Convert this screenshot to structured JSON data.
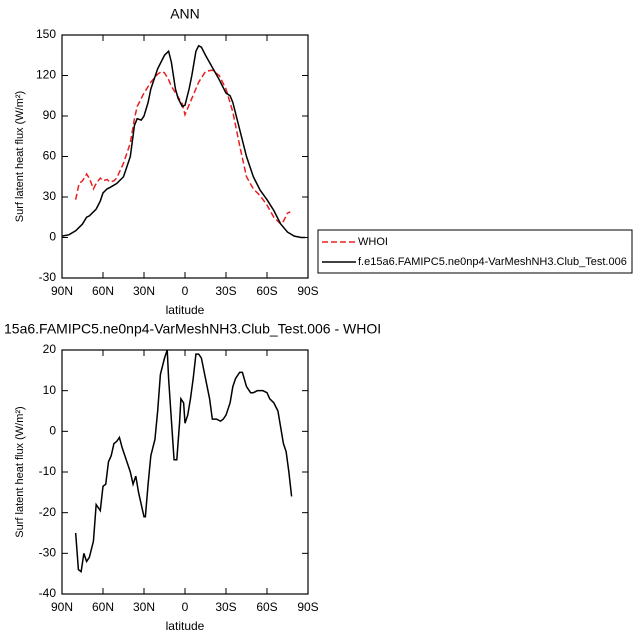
{
  "chart_data": [
    {
      "type": "line",
      "title": "ANN",
      "xlabel": "latitude",
      "ylabel": "Surf latent heat flux (W/m²)",
      "xlim": [
        90,
        -90
      ],
      "xticks": [
        {
          "value": 90,
          "label": "90N"
        },
        {
          "value": 60,
          "label": "60N"
        },
        {
          "value": 30,
          "label": "30N"
        },
        0,
        {
          "value": -30,
          "label": "30S"
        },
        {
          "value": -60,
          "label": "60S"
        },
        {
          "value": -90,
          "label": "90S"
        }
      ],
      "ylim": [
        -30,
        150
      ],
      "yticks": [
        -30,
        0,
        30,
        60,
        90,
        120,
        150
      ],
      "legend": "right",
      "series": [
        {
          "name": "WHOI",
          "color": "#e8201e",
          "line_style": "dashed",
          "x": [
            80,
            77.5,
            75,
            72,
            70,
            67,
            65,
            62,
            60,
            57,
            55,
            52,
            50,
            45,
            40,
            37,
            35,
            30,
            25,
            20,
            17,
            15,
            12,
            10,
            5,
            2,
            0,
            -5,
            -10,
            -15,
            -20,
            -25,
            -30,
            -35,
            -40,
            -45,
            -50,
            -55,
            -60,
            -65,
            -70,
            -72,
            -75,
            -77
          ],
          "values": [
            28,
            40,
            42,
            47,
            44,
            36,
            40,
            44,
            42,
            43,
            41,
            42,
            44,
            55,
            70,
            88,
            97,
            107,
            115,
            121,
            123,
            122,
            117,
            112,
            104,
            99,
            91,
            103,
            115,
            123,
            124,
            120,
            110,
            93,
            68,
            45,
            36,
            31,
            24,
            15,
            10,
            12,
            18,
            19
          ]
        },
        {
          "name": "f.e15a6.FAMIPC5.ne0np4-VarMeshNH3.Club_Test.006",
          "color": "#000000",
          "line_style": "solid",
          "x": [
            90,
            85,
            80,
            75,
            72,
            70,
            65,
            62,
            60,
            57,
            55,
            50,
            45,
            40,
            37,
            35,
            32,
            30,
            27,
            25,
            20,
            15,
            12,
            10,
            7,
            5,
            2,
            0,
            -3,
            -5,
            -8,
            -10,
            -12,
            -15,
            -20,
            -25,
            -30,
            -33,
            -35,
            -40,
            -45,
            -50,
            -55,
            -60,
            -65,
            -70,
            -75,
            -80,
            -85,
            -88
          ],
          "values": [
            1,
            2,
            5,
            10,
            15,
            16,
            21,
            27,
            33,
            36,
            37,
            40,
            45,
            60,
            83,
            88,
            87,
            90,
            100,
            110,
            125,
            135,
            138,
            130,
            110,
            103,
            97,
            98,
            110,
            120,
            138,
            142,
            141,
            135,
            126,
            117,
            107,
            105,
            100,
            80,
            60,
            45,
            35,
            28,
            20,
            10,
            4,
            1,
            0,
            0
          ]
        }
      ]
    },
    {
      "type": "line",
      "title": "15a6.FAMIPC5.ne0np4-VarMeshNH3.Club_Test.006 - WHOI",
      "xlabel": "latitude",
      "ylabel": "Surf latent heat flux (W/m²)",
      "xlim": [
        90,
        -90
      ],
      "xticks": [
        {
          "value": 90,
          "label": "90N"
        },
        {
          "value": 60,
          "label": "60N"
        },
        {
          "value": 30,
          "label": "30N"
        },
        0,
        {
          "value": -30,
          "label": "30S"
        },
        {
          "value": -60,
          "label": "60S"
        },
        {
          "value": -90,
          "label": "90S"
        }
      ],
      "ylim": [
        -40,
        20
      ],
      "yticks": [
        -40,
        -30,
        -20,
        -10,
        0,
        10,
        20
      ],
      "series": [
        {
          "color": "#000000",
          "line_style": "solid",
          "x": [
            80,
            78,
            76,
            74,
            72,
            70,
            67,
            65,
            62,
            60,
            58,
            56,
            54,
            52,
            50,
            48,
            46,
            44,
            42,
            40,
            38,
            36,
            34,
            32,
            30,
            29,
            27,
            25,
            22,
            20,
            18,
            15,
            13,
            12,
            10,
            8,
            6,
            4,
            3,
            1,
            0,
            -2,
            -4,
            -6,
            -8,
            -10,
            -12,
            -15,
            -18,
            -20,
            -23,
            -26,
            -28,
            -30,
            -33,
            -35,
            -37,
            -40,
            -42,
            -45,
            -48,
            -50,
            -53,
            -57,
            -60,
            -62,
            -65,
            -68,
            -70,
            -72,
            -74,
            -76,
            -78
          ],
          "values": [
            -25,
            -34,
            -34.5,
            -30,
            -32,
            -31,
            -27,
            -18,
            -19.5,
            -13.5,
            -13,
            -7.5,
            -6,
            -3,
            -2.5,
            -1.5,
            -4,
            -6,
            -8,
            -10,
            -13,
            -11,
            -15,
            -18,
            -21,
            -21,
            -13,
            -6,
            -2,
            5,
            14,
            18,
            20,
            13,
            3,
            -7,
            -7,
            2,
            8,
            7,
            2,
            4,
            8,
            13,
            19,
            19,
            18,
            13,
            8,
            3,
            3,
            2.5,
            3,
            4,
            7,
            11,
            13,
            14.5,
            14.5,
            11,
            9.5,
            9.5,
            10,
            10,
            9.5,
            8,
            7,
            5,
            1,
            -3,
            -5,
            -10,
            -16
          ]
        }
      ]
    }
  ]
}
